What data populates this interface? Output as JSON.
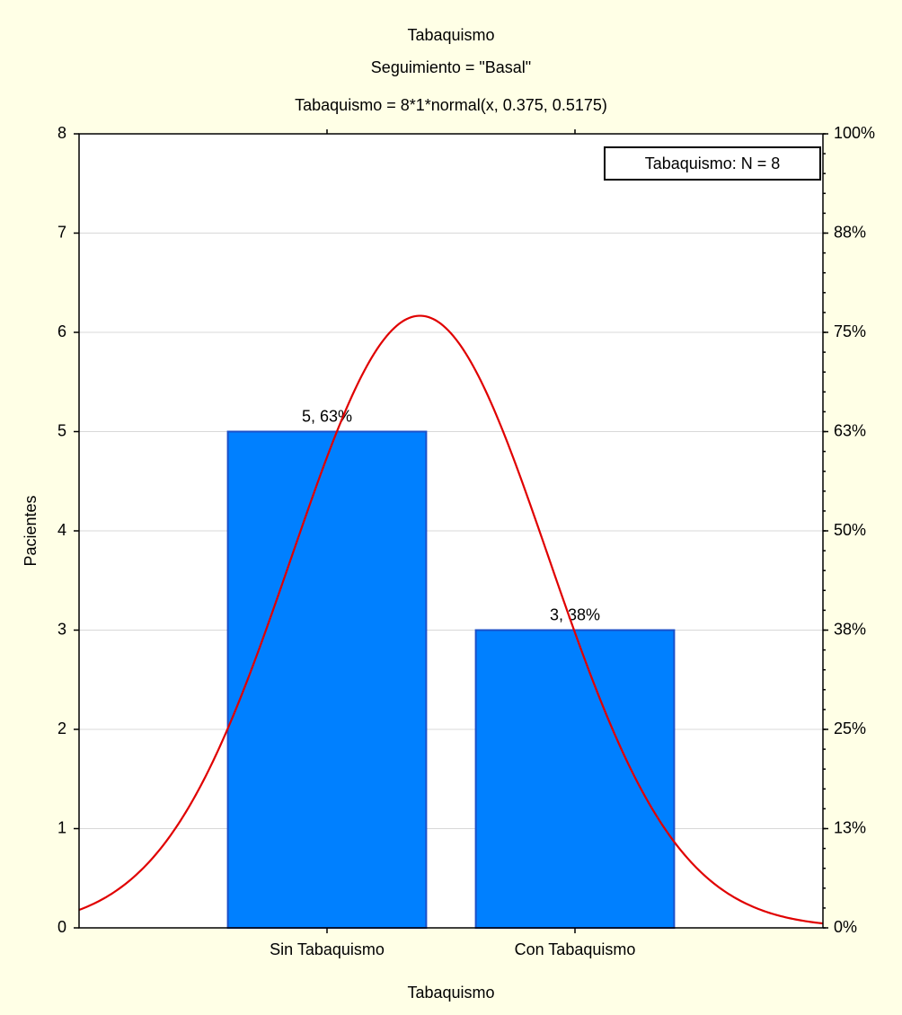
{
  "chart_data": {
    "type": "bar",
    "title": "Tabaquismo",
    "subtitle": "Seguimiento = \"Basal\"",
    "fit_label": "Tabaquismo = 8*1*normal(x, 0.375, 0.5175)",
    "x_label": "Tabaquismo",
    "y_label": "Pacientes",
    "legend_text": "Tabaquismo:  N = 8",
    "categories": [
      "Sin Tabaquismo",
      "Con Tabaquismo"
    ],
    "values": [
      5,
      3
    ],
    "value_labels": [
      "5, 63%",
      "3, 38%"
    ],
    "color": "#0080ff",
    "edge_color": "#1c50c8",
    "xlim": [
      -1,
      2
    ],
    "ylim": [
      0,
      8
    ],
    "yticks": [
      0,
      1,
      2,
      3,
      4,
      5,
      6,
      7,
      8
    ],
    "y2lim": [
      0,
      100
    ],
    "y2ticks": [
      {
        "value": 0,
        "label": "0%"
      },
      {
        "value": 12.5,
        "label": "13%"
      },
      {
        "value": 25,
        "label": "25%"
      },
      {
        "value": 37.5,
        "label": "38%"
      },
      {
        "value": 50,
        "label": "50%"
      },
      {
        "value": 62.5,
        "label": "63%"
      },
      {
        "value": 75,
        "label": "75%"
      },
      {
        "value": 87.5,
        "label": "88%"
      },
      {
        "value": 100,
        "label": "100%"
      }
    ],
    "grid": true,
    "curve": {
      "scale": 8,
      "mean": 0.375,
      "sd": 0.5175,
      "color": "#e00000"
    }
  }
}
